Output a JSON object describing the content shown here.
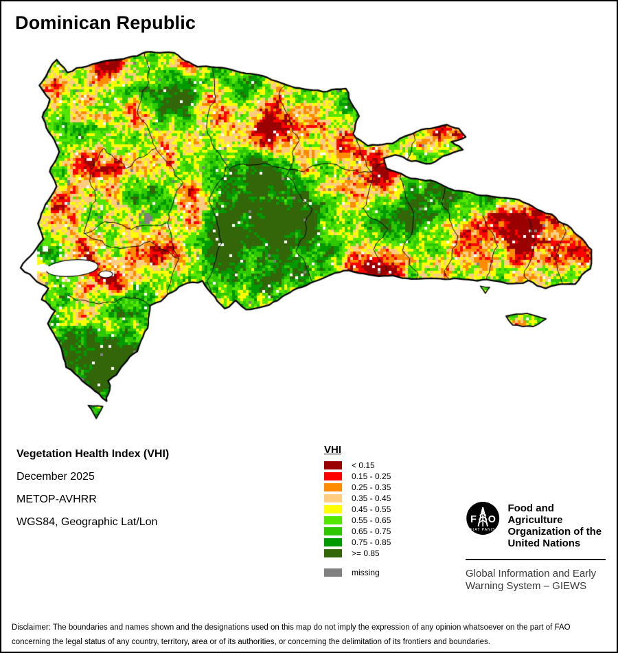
{
  "title": "Dominican Republic",
  "info": {
    "product": "Vegetation Health Index (VHI)",
    "date": "December 2025",
    "sensor": "METOP-AVHRR",
    "projection": "WGS84, Geographic Lat/Lon"
  },
  "legend": {
    "title": "VHI",
    "items": [
      {
        "label": "< 0.15",
        "color": "#9b0000"
      },
      {
        "label": "0.15 - 0.25",
        "color": "#ff0000"
      },
      {
        "label": "0.25 - 0.35",
        "color": "#ff8c00"
      },
      {
        "label": "0.35 - 0.45",
        "color": "#ffcc80"
      },
      {
        "label": "0.45 - 0.55",
        "color": "#ffff00"
      },
      {
        "label": "0.55 - 0.65",
        "color": "#55e600"
      },
      {
        "label": "0.65 - 0.75",
        "color": "#2fc800"
      },
      {
        "label": "0.75 - 0.85",
        "color": "#009a00"
      },
      {
        "label": ">= 0.85",
        "color": "#336608"
      }
    ],
    "missing": {
      "label": "missing",
      "color": "#808080"
    }
  },
  "fao": {
    "logo_f": "F",
    "logo_o": "O",
    "logo_motto": "FIAT PANIS",
    "org_line1": "Food and Agriculture",
    "org_line2": "Organization of the",
    "org_line3": "United Nations",
    "giews_line1": "Global Information and Early",
    "giews_line2": "Warning System – GIEWS"
  },
  "disclaimer": "Disclaimer: The boundaries and names shown and the designations used on this map do not imply the expression of any opinion whatsoever on the part of FAO concerning the legal status of any country, territory, area or of its authorities, or concerning the delimitation of its frontiers and boundaries."
}
